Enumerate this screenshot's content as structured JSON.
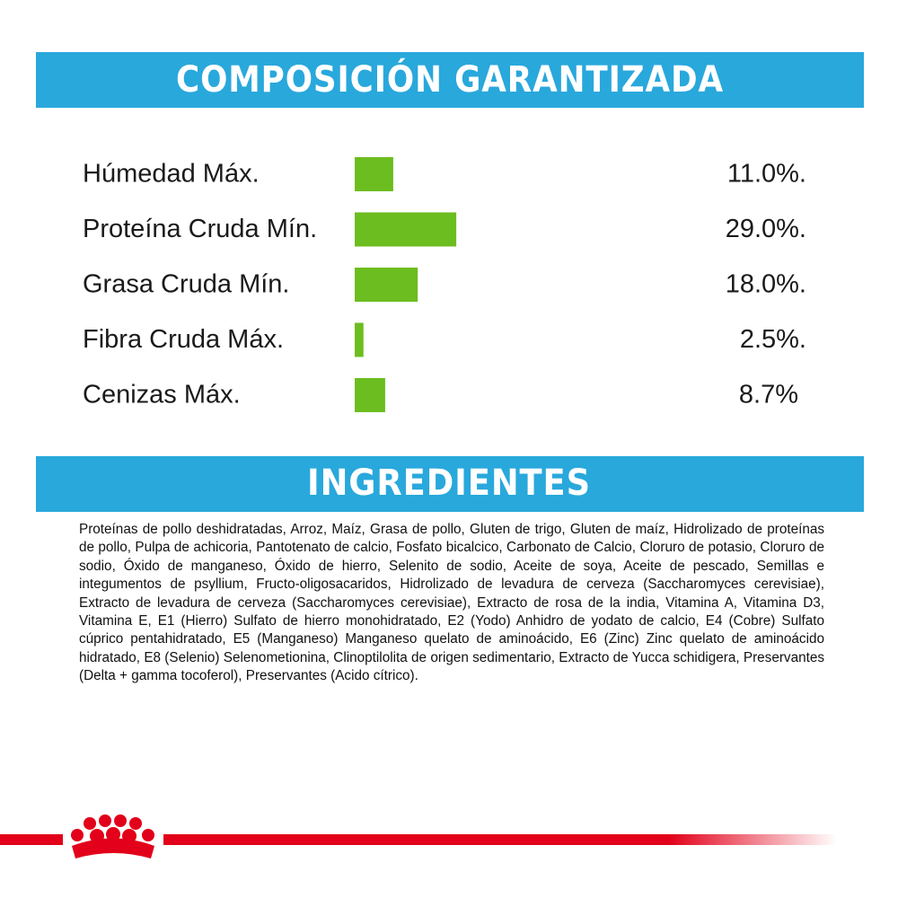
{
  "chart_data": {
    "type": "bar",
    "title": "COMPOSICIÓN GARANTIZADA",
    "orientation": "horizontal",
    "color": "#6cbd1f",
    "categories": [
      "Húmedad Máx.",
      "Proteína Cruda Mín.",
      "Grasa Cruda Mín.",
      "Fibra Cruda Máx.",
      "Cenizas Máx."
    ],
    "values": [
      11.0,
      29.0,
      18.0,
      2.5,
      8.7
    ],
    "value_labels": [
      "11.0%.",
      "29.0%.",
      "18.0%.",
      "2.5%.",
      "8.7%"
    ]
  },
  "ingredients": {
    "title": "INGREDIENTES",
    "text": "Proteínas de pollo deshidratadas, Arroz, Maíz, Grasa de pollo, Gluten de trigo, Gluten de maíz, Hidrolizado de proteínas de pollo, Pulpa de achicoria, Pantotenato de calcio, Fosfato bicalcico, Carbonato de Calcio, Cloruro de potasio, Cloruro de sodio, Óxido de manganeso, Óxido de hierro, Selenito de sodio, Aceite de soya, Aceite de pescado, Semillas e integumentos de psyllium, Fructo-oligosacaridos, Hidrolizado de levadura de cerveza (Saccharomyces cerevisiae), Extracto de levadura de cerveza (Saccharomyces cerevisiae), Extracto de rosa de la india, Vitamina A, Vitamina D3, Vitamina E, E1 (Hierro) Sulfato de hierro monohidratado, E2 (Yodo) Anhidro de yodato de calcio, E4 (Cobre) Sulfato cúprico pentahidratado, E5 (Manganeso) Manganeso quelato de aminoácido, E6 (Zinc) Zinc quelato de aminoácido hidratado, E8 (Selenio) Selenometionina, Clinoptilolita de origen sedimentario, Extracto de Yucca schidigera, Preservantes (Delta + gamma tocoferol), Preservantes (Acido cítrico)."
  }
}
